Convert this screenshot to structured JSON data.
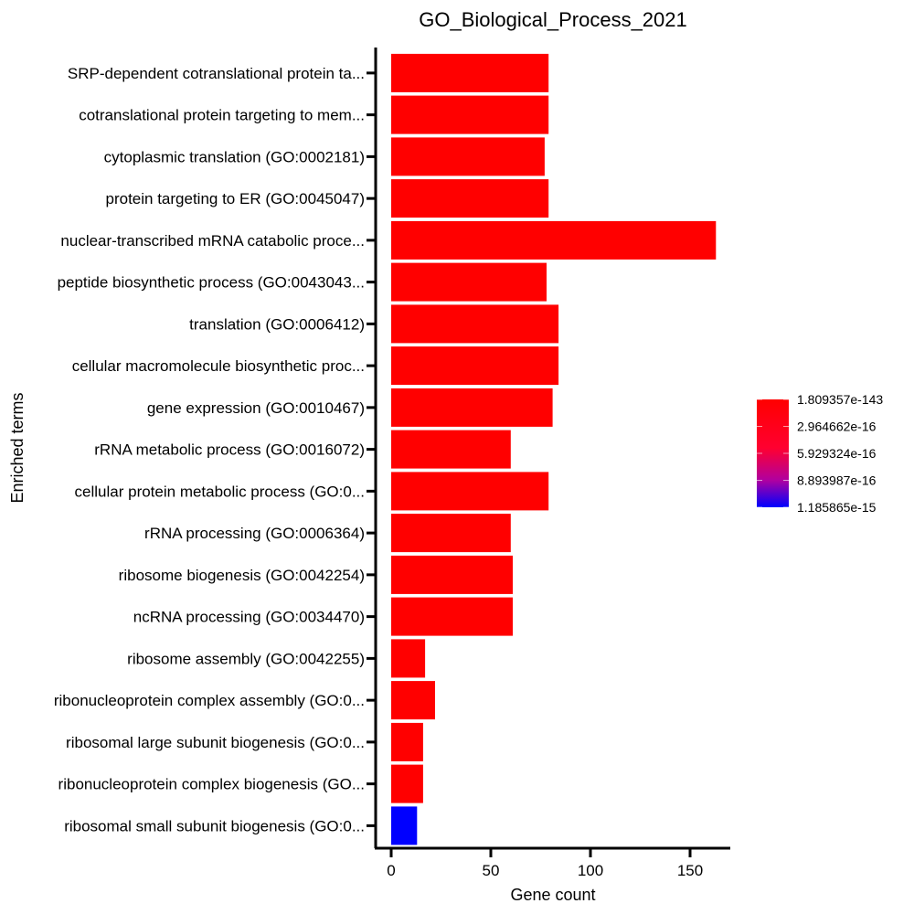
{
  "chart_data": {
    "type": "bar",
    "orientation": "horizontal",
    "title": "GO_Biological_Process_2021",
    "xlabel": "Gene count",
    "ylabel": "Enriched terms",
    "xlim": [
      0,
      170
    ],
    "xticks": [
      0,
      50,
      100,
      150
    ],
    "grid": false,
    "categories": [
      "SRP-dependent cotranslational protein ta...",
      "cotranslational protein targeting to mem...",
      "cytoplasmic translation (GO:0002181)",
      "protein targeting to ER (GO:0045047)",
      "nuclear-transcribed mRNA catabolic proce...",
      "peptide biosynthetic process (GO:0043043...",
      "translation (GO:0006412)",
      "cellular macromolecule biosynthetic proc...",
      "gene expression (GO:0010467)",
      "rRNA metabolic process (GO:0016072)",
      "cellular protein metabolic process (GO:0...",
      "rRNA processing (GO:0006364)",
      "ribosome biogenesis (GO:0042254)",
      "ncRNA processing (GO:0034470)",
      "ribosome assembly (GO:0042255)",
      "ribonucleoprotein complex assembly (GO:0...",
      "ribosomal large subunit biogenesis (GO:0...",
      "ribonucleoprotein complex biogenesis (GO...",
      "ribosomal small subunit biogenesis (GO:0..."
    ],
    "values": [
      79,
      79,
      77,
      79,
      163,
      78,
      84,
      84,
      81,
      60,
      79,
      60,
      61,
      61,
      17,
      22,
      16,
      16,
      13
    ],
    "bar_colors": [
      "#ff0000",
      "#ff0000",
      "#ff0000",
      "#ff0000",
      "#ff0000",
      "#ff0000",
      "#ff0000",
      "#ff0000",
      "#ff0000",
      "#ff0000",
      "#ff0000",
      "#ff0000",
      "#ff0000",
      "#ff0000",
      "#ff0000",
      "#ff0000",
      "#ff0000",
      "#ff0000",
      "#0000ff"
    ],
    "colorbar": {
      "labels": [
        "1.809357e-143",
        "2.964662e-16",
        "5.929324e-16",
        "8.893987e-16",
        "1.185865e-15"
      ],
      "color_low": "#ff0000",
      "color_high": "#0000ff",
      "placement": "right"
    }
  }
}
